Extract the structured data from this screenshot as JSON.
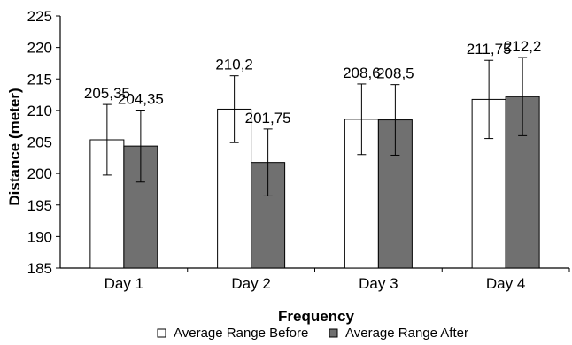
{
  "chart_data": {
    "type": "bar",
    "title": "",
    "xlabel": "Frequency",
    "ylabel": "Distance (meter)",
    "ylim": [
      185,
      225
    ],
    "ytick_step": 5,
    "yticks": [
      "185",
      "190",
      "195",
      "200",
      "205",
      "210",
      "215",
      "220",
      "225"
    ],
    "categories": [
      "Day 1",
      "Day 2",
      "Day 3",
      "Day 4"
    ],
    "series": [
      {
        "name": "Average Range Before",
        "color": "#ffffff",
        "values": [
          205.35,
          210.2,
          208.6,
          211.75
        ],
        "labels": [
          "205,35",
          "210,2",
          "208,6",
          "211,75"
        ],
        "error": [
          5.6,
          5.3,
          5.6,
          6.2
        ]
      },
      {
        "name": "Average Range After",
        "color": "#707070",
        "values": [
          204.35,
          201.75,
          208.5,
          212.2
        ],
        "labels": [
          "204,35",
          "201,75",
          "208,5",
          "212,2"
        ],
        "error": [
          5.7,
          5.3,
          5.6,
          6.2
        ]
      }
    ],
    "grid": false,
    "legend_position": "bottom"
  }
}
